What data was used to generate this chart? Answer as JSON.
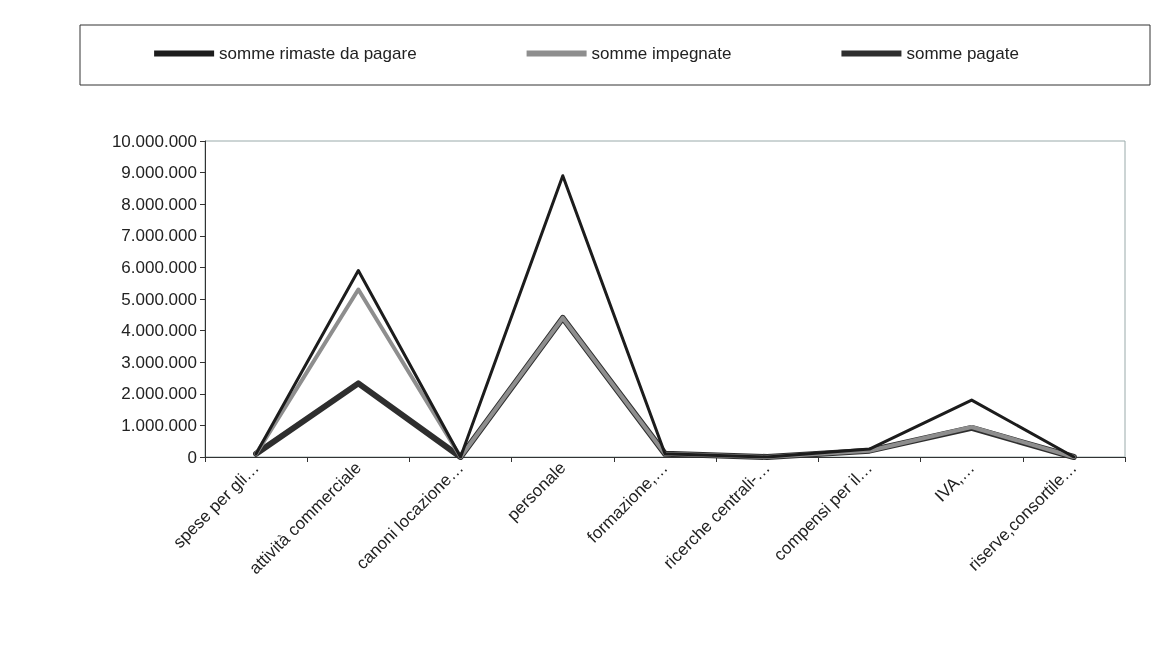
{
  "chart_data": {
    "type": "line",
    "categories": [
      "spese per gli…",
      "attività commerciale",
      "canoni locazione…",
      "personale",
      "formazione,…",
      "ricerche centrali-…",
      "compensi per il…",
      "IVA,…",
      "riserve,consortile…"
    ],
    "series": [
      {
        "name": "somme rimaste da pagare",
        "color": "#1c1c1c",
        "values": [
          100000,
          5900000,
          0,
          8900000,
          100000,
          0,
          250000,
          1800000,
          0
        ]
      },
      {
        "name": "somme impegnate",
        "color": "#8e8e8e",
        "values": [
          100000,
          5300000,
          0,
          4400000,
          100000,
          0,
          200000,
          950000,
          0
        ]
      },
      {
        "name": "somme pagate",
        "color": "#2e2e2e",
        "values": [
          100000,
          2330000,
          0,
          4400000,
          100000,
          0,
          200000,
          920000,
          0
        ]
      }
    ],
    "ylim": [
      0,
      10000000
    ],
    "yticks": [
      {
        "value": 0,
        "label": "0"
      },
      {
        "value": 1000000,
        "label": "1.000.000"
      },
      {
        "value": 2000000,
        "label": "2.000.000"
      },
      {
        "value": 3000000,
        "label": "3.000.000"
      },
      {
        "value": 4000000,
        "label": "4.000.000"
      },
      {
        "value": 5000000,
        "label": "5.000.000"
      },
      {
        "value": 6000000,
        "label": "6.000.000"
      },
      {
        "value": 7000000,
        "label": "7.000.000"
      },
      {
        "value": 8000000,
        "label": "8.000.000"
      },
      {
        "value": 9000000,
        "label": "9.000.000"
      },
      {
        "value": 10000000,
        "label": "10.000.000"
      }
    ],
    "grid": false,
    "legend": "top",
    "marker": "none",
    "line_style": "solid"
  }
}
